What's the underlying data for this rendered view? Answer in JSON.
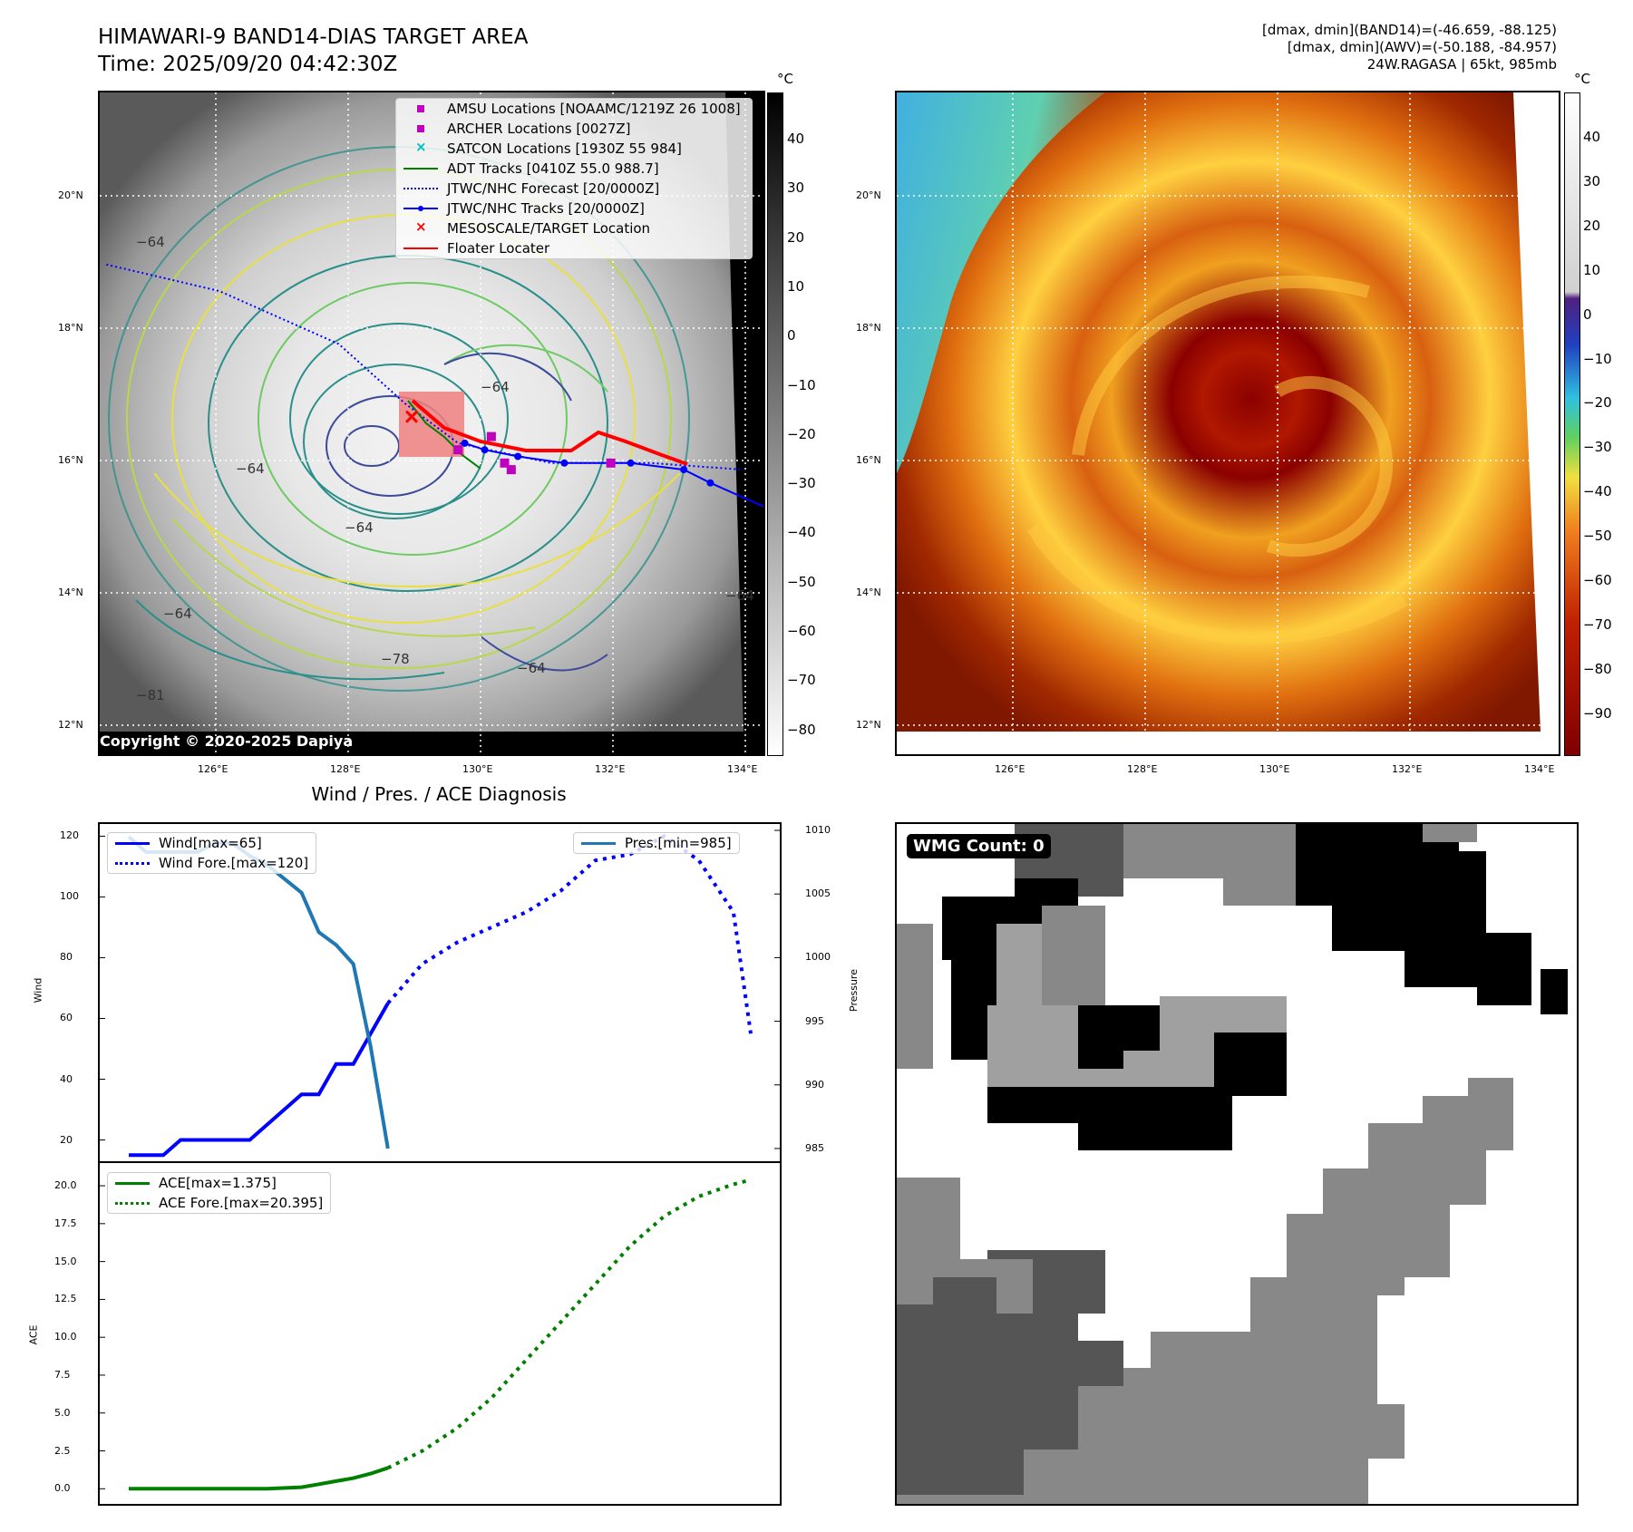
{
  "header": {
    "title_line1": "HIMAWARI-9 BAND14-DIAS TARGET AREA",
    "title_line2": "Time: 2025/09/20 04:42:30Z",
    "stats_line1": "[dmax, dmin](BAND14)=(-46.659, -88.125)",
    "stats_line2": "[dmax, dmin](AWV)=(-50.188, -84.957)",
    "stats_line3": "24W.RAGASA | 65kt, 985mb"
  },
  "colorbar_unit": "°C",
  "copyright": "Copyright © 2020-2025 Dapiya",
  "wmg_label": "WMG Count: 0",
  "colors": {
    "wind": "#0000ff",
    "pressure": "#1f77b4",
    "ace": "#008000",
    "adt": "#008000",
    "jtwc": "#0000ff",
    "floater": "#ff0000"
  },
  "chart_data": [
    {
      "type": "heatmap",
      "name": "band14_ir_map",
      "x_ticks": [
        "126°E",
        "128°E",
        "130°E",
        "132°E",
        "134°E"
      ],
      "y_ticks": [
        "20°N",
        "18°N",
        "16°N",
        "14°N",
        "12°N"
      ],
      "lon_range": [
        124.2,
        134.2
      ],
      "lat_range": [
        11.6,
        21.6
      ],
      "colorbar_ticks": [
        "40",
        "30",
        "20",
        "10",
        "0",
        "−10",
        "−20",
        "−30",
        "−40",
        "−50",
        "−60",
        "−70",
        "−80"
      ],
      "legend": [
        {
          "label": "AMSU Locations [NOAAMC/1219Z 26 1008]",
          "marker": "square",
          "color": "#bf00bf"
        },
        {
          "label": "ARCHER Locations [0027Z]",
          "marker": "square",
          "color": "#bf00bf"
        },
        {
          "label": "SATCON Locations [1930Z 55 984]",
          "marker": "x",
          "color": "#00bfbf"
        },
        {
          "label": "ADT Tracks [0410Z 55.0 988.7]",
          "marker": "line",
          "color": "#008000"
        },
        {
          "label": "JTWC/NHC Forecast [20/0000Z]",
          "marker": "dotted",
          "color": "#0000ff"
        },
        {
          "label": "JTWC/NHC Tracks [20/0000Z]",
          "marker": "line-dot",
          "color": "#0000ff"
        },
        {
          "label": "MESOSCALE/TARGET Location",
          "marker": "x",
          "color": "#ff0000"
        },
        {
          "label": "Floater Locater",
          "marker": "line",
          "color": "#ff0000"
        }
      ],
      "contour_labels": [
        "−64",
        "−64",
        "−81",
        "−64",
        "−78",
        "−64",
        "−64",
        "−64",
        "−64"
      ],
      "jtwc_track": [
        [
          134.3,
          15.3
        ],
        [
          133.4,
          15.7
        ],
        [
          133.0,
          15.9
        ],
        [
          132.2,
          16.0
        ],
        [
          131.2,
          16.0
        ],
        [
          130.5,
          16.1
        ],
        [
          130.0,
          16.2
        ],
        [
          129.7,
          16.3
        ]
      ],
      "jtwc_forecast": [
        [
          124.3,
          19.0
        ],
        [
          126.0,
          18.6
        ],
        [
          127.8,
          17.8
        ],
        [
          128.8,
          16.9
        ],
        [
          129.6,
          16.3
        ],
        [
          131.0,
          16.0
        ],
        [
          132.5,
          16.0
        ],
        [
          133.9,
          15.9
        ]
      ],
      "amsu_points": [
        [
          129.6,
          16.2
        ],
        [
          130.1,
          16.4
        ],
        [
          130.3,
          16.0
        ],
        [
          130.4,
          15.9
        ],
        [
          131.9,
          16.0
        ]
      ],
      "target_location": [
        128.9,
        16.7
      ]
    },
    {
      "type": "heatmap",
      "name": "awv_map",
      "x_ticks": [
        "126°E",
        "128°E",
        "130°E",
        "132°E",
        "134°E"
      ],
      "y_ticks": [
        "20°N",
        "18°N",
        "16°N",
        "14°N",
        "12°N"
      ],
      "colorbar_ticks": [
        "40",
        "30",
        "20",
        "10",
        "0",
        "−10",
        "−20",
        "−30",
        "−40",
        "−50",
        "−60",
        "−70",
        "−80",
        "−90"
      ]
    },
    {
      "type": "line",
      "name": "wind_pressure",
      "title": "Wind / Pres. / ACE Diagnosis",
      "ylabel": "Wind",
      "ylabel_right": "Pressure",
      "ylim": [
        13,
        124
      ],
      "ylim_right": [
        984,
        1010.5
      ],
      "y_ticks": [
        20,
        40,
        60,
        80,
        100,
        120
      ],
      "y_ticks_right": [
        985,
        990,
        995,
        1000,
        1005,
        1010
      ],
      "x_index_range": [
        0,
        36
      ],
      "series": [
        {
          "name": "Wind[max=65]",
          "style": "solid",
          "color": "#0000ff",
          "x": [
            0,
            2,
            3,
            7,
            10,
            11,
            12,
            13,
            15
          ],
          "values": [
            15,
            15,
            20,
            20,
            35,
            35,
            45,
            45,
            65
          ]
        },
        {
          "name": "Wind Fore.[max=120]",
          "style": "dotted",
          "color": "#0000ff",
          "x": [
            15,
            17,
            19,
            21,
            23,
            25,
            27,
            29,
            31,
            33,
            35,
            36
          ],
          "values": [
            65,
            78,
            85,
            90,
            95,
            102,
            112,
            114,
            120,
            112,
            95,
            55
          ]
        },
        {
          "name": "Pres.[min=985]",
          "style": "solid",
          "color": "#1f77b4",
          "axis": "right",
          "x": [
            0,
            1,
            3,
            4,
            5,
            6,
            7,
            8,
            10,
            11,
            12,
            13,
            14,
            15
          ],
          "values": [
            1009.5,
            1008.3,
            1008.3,
            1008.3,
            1009,
            1009,
            1008,
            1007.3,
            1005.1,
            1002,
            1001,
            999.5,
            993,
            985
          ]
        }
      ]
    },
    {
      "type": "line",
      "name": "ace",
      "ylabel": "ACE",
      "ylim": [
        -1.0,
        21.5
      ],
      "y_ticks": [
        0.0,
        2.5,
        5.0,
        7.5,
        10.0,
        12.5,
        15.0,
        17.5,
        20.0
      ],
      "x_index_range": [
        0,
        36
      ],
      "series": [
        {
          "name": "ACE[max=1.375]",
          "style": "solid",
          "color": "#008000",
          "x": [
            0,
            4,
            8,
            10,
            11,
            12,
            13,
            14,
            15
          ],
          "values": [
            0.0,
            0.0,
            0.0,
            0.1,
            0.3,
            0.5,
            0.7,
            1.0,
            1.375
          ]
        },
        {
          "name": "ACE Fore.[max=20.395]",
          "style": "dotted",
          "color": "#008000",
          "x": [
            15,
            17,
            19,
            21,
            23,
            25,
            27,
            29,
            31,
            33,
            35,
            36
          ],
          "values": [
            1.375,
            2.5,
            4.0,
            6.0,
            8.5,
            11.0,
            13.5,
            16.0,
            18.0,
            19.3,
            20.1,
            20.395
          ]
        }
      ]
    }
  ]
}
